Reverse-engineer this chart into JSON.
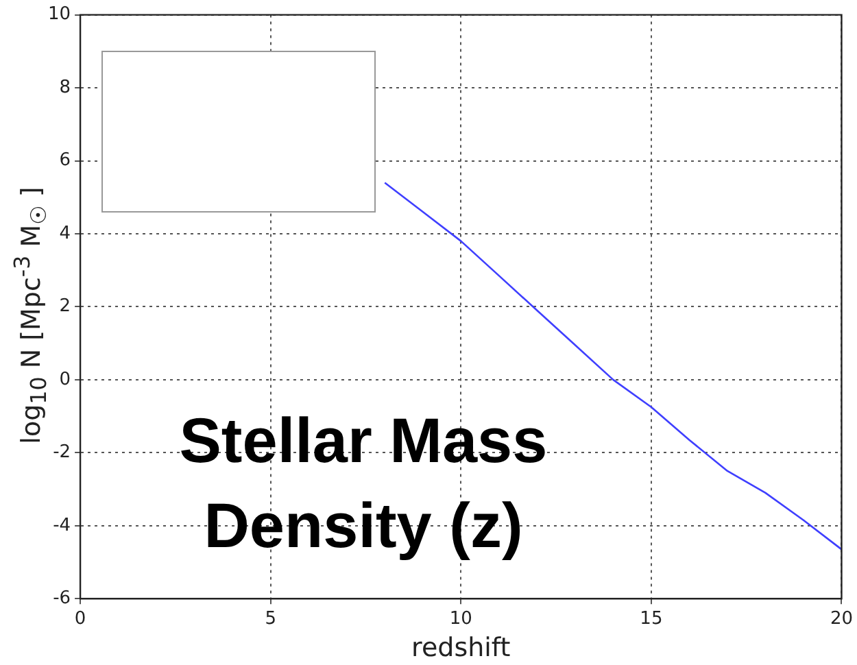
{
  "chart_data": {
    "type": "line",
    "xlabel": "redshift",
    "ylabel": "log$_{10}$ N [Mpc$^{-3}$ M$_{☉}$ ]",
    "annotations": [
      "Stellar Mass Density (z)"
    ],
    "x": [
      8,
      9,
      10,
      11,
      12,
      13,
      14,
      15,
      16,
      17,
      18,
      19,
      20
    ],
    "series": [
      {
        "color": "#3f3fff",
        "values": [
          5.4,
          4.6,
          3.8,
          2.85,
          1.9,
          0.95,
          0,
          -0.75,
          -1.65,
          -2.5,
          -3.1,
          -3.85,
          -4.65
        ]
      }
    ],
    "xlim": [
      0,
      20
    ],
    "xticks": [
      0,
      5,
      10,
      15,
      20
    ],
    "ylim": [
      -6,
      10
    ],
    "yticks": [
      -6,
      -4,
      -2,
      0,
      2,
      4,
      6,
      8,
      10
    ],
    "grid": true,
    "marker": "none",
    "line_style": "solid",
    "legend": false
  }
}
